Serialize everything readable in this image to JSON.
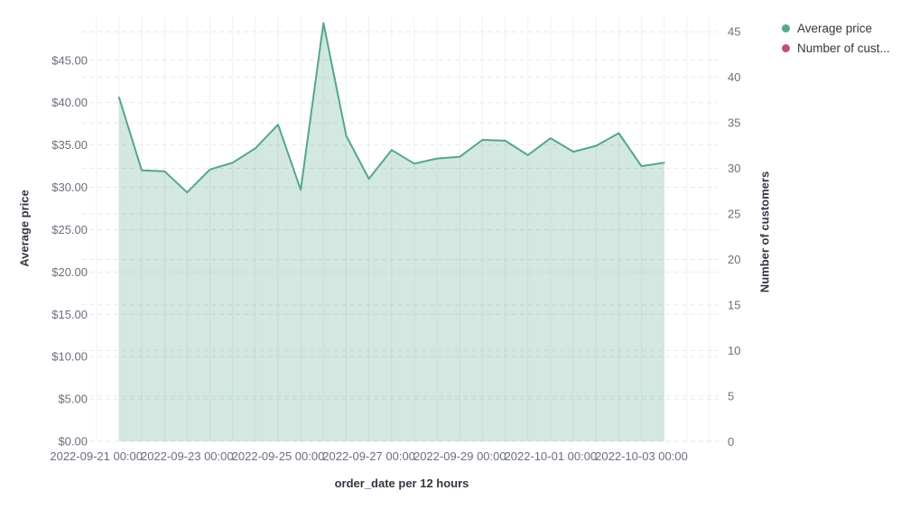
{
  "chart_data": {
    "type": "area",
    "title": "",
    "xlabel": "order_date per 12 hours",
    "ylabel_left": "Average price",
    "ylabel_right": "Number of customers",
    "x": [
      "2022-09-21 12:00",
      "2022-09-22 00:00",
      "2022-09-22 12:00",
      "2022-09-23 00:00",
      "2022-09-23 12:00",
      "2022-09-24 00:00",
      "2022-09-24 12:00",
      "2022-09-25 00:00",
      "2022-09-25 12:00",
      "2022-09-26 00:00",
      "2022-09-26 12:00",
      "2022-09-27 00:00",
      "2022-09-27 12:00",
      "2022-09-28 00:00",
      "2022-09-28 12:00",
      "2022-09-29 00:00",
      "2022-09-29 12:00",
      "2022-09-30 00:00",
      "2022-09-30 12:00",
      "2022-10-01 00:00",
      "2022-10-01 12:00",
      "2022-10-02 00:00",
      "2022-10-02 12:00",
      "2022-10-03 00:00",
      "2022-10-03 12:00"
    ],
    "series": [
      {
        "name": "Average price",
        "axis": "left",
        "color": "#55a787",
        "fill": "rgba(85,167,135,0.26)",
        "values": [
          40.6,
          32.0,
          31.9,
          29.4,
          32.1,
          32.9,
          34.6,
          37.4,
          29.7,
          49.4,
          36.1,
          31.0,
          34.4,
          32.8,
          33.4,
          33.6,
          35.6,
          35.5,
          33.8,
          35.8,
          34.2,
          34.9,
          36.4,
          32.5,
          32.9
        ]
      },
      {
        "name": "Number of customers",
        "axis": "right",
        "color": "#c0516e",
        "values": []
      }
    ],
    "legend": {
      "position": "top-right",
      "items": [
        {
          "label": "Average price",
          "color": "#55a787"
        },
        {
          "label": "Number of cust...",
          "color": "#c0516e"
        }
      ]
    },
    "left_axis": {
      "tick_values": [
        0,
        5,
        10,
        15,
        20,
        25,
        30,
        35,
        40,
        45
      ],
      "tick_labels": [
        "$0.00",
        "$5.00",
        "$10.00",
        "$15.00",
        "$20.00",
        "$25.00",
        "$30.00",
        "$35.00",
        "$40.00",
        "$45.00"
      ],
      "ylim": [
        0,
        50.2
      ]
    },
    "right_axis": {
      "tick_values": [
        0,
        5,
        10,
        15,
        20,
        25,
        30,
        35,
        40,
        45
      ],
      "tick_labels": [
        "0",
        "5",
        "10",
        "15",
        "20",
        "25",
        "30",
        "35",
        "40",
        "45"
      ],
      "ylim": [
        0,
        46.7
      ]
    },
    "x_axis": {
      "tick_labels": [
        "2022-09-21 00:00",
        "2022-09-23 00:00",
        "2022-09-25 00:00",
        "2022-09-27 00:00",
        "2022-09-29 00:00",
        "2022-10-01 00:00",
        "2022-10-03 00:00"
      ]
    },
    "grid": true,
    "style": {
      "vgrid_color": "#eef1f5",
      "hgrid_color": "#e4e9f0",
      "tick_color": "#69707d",
      "title_color": "#343741",
      "background": "#ffffff"
    }
  }
}
